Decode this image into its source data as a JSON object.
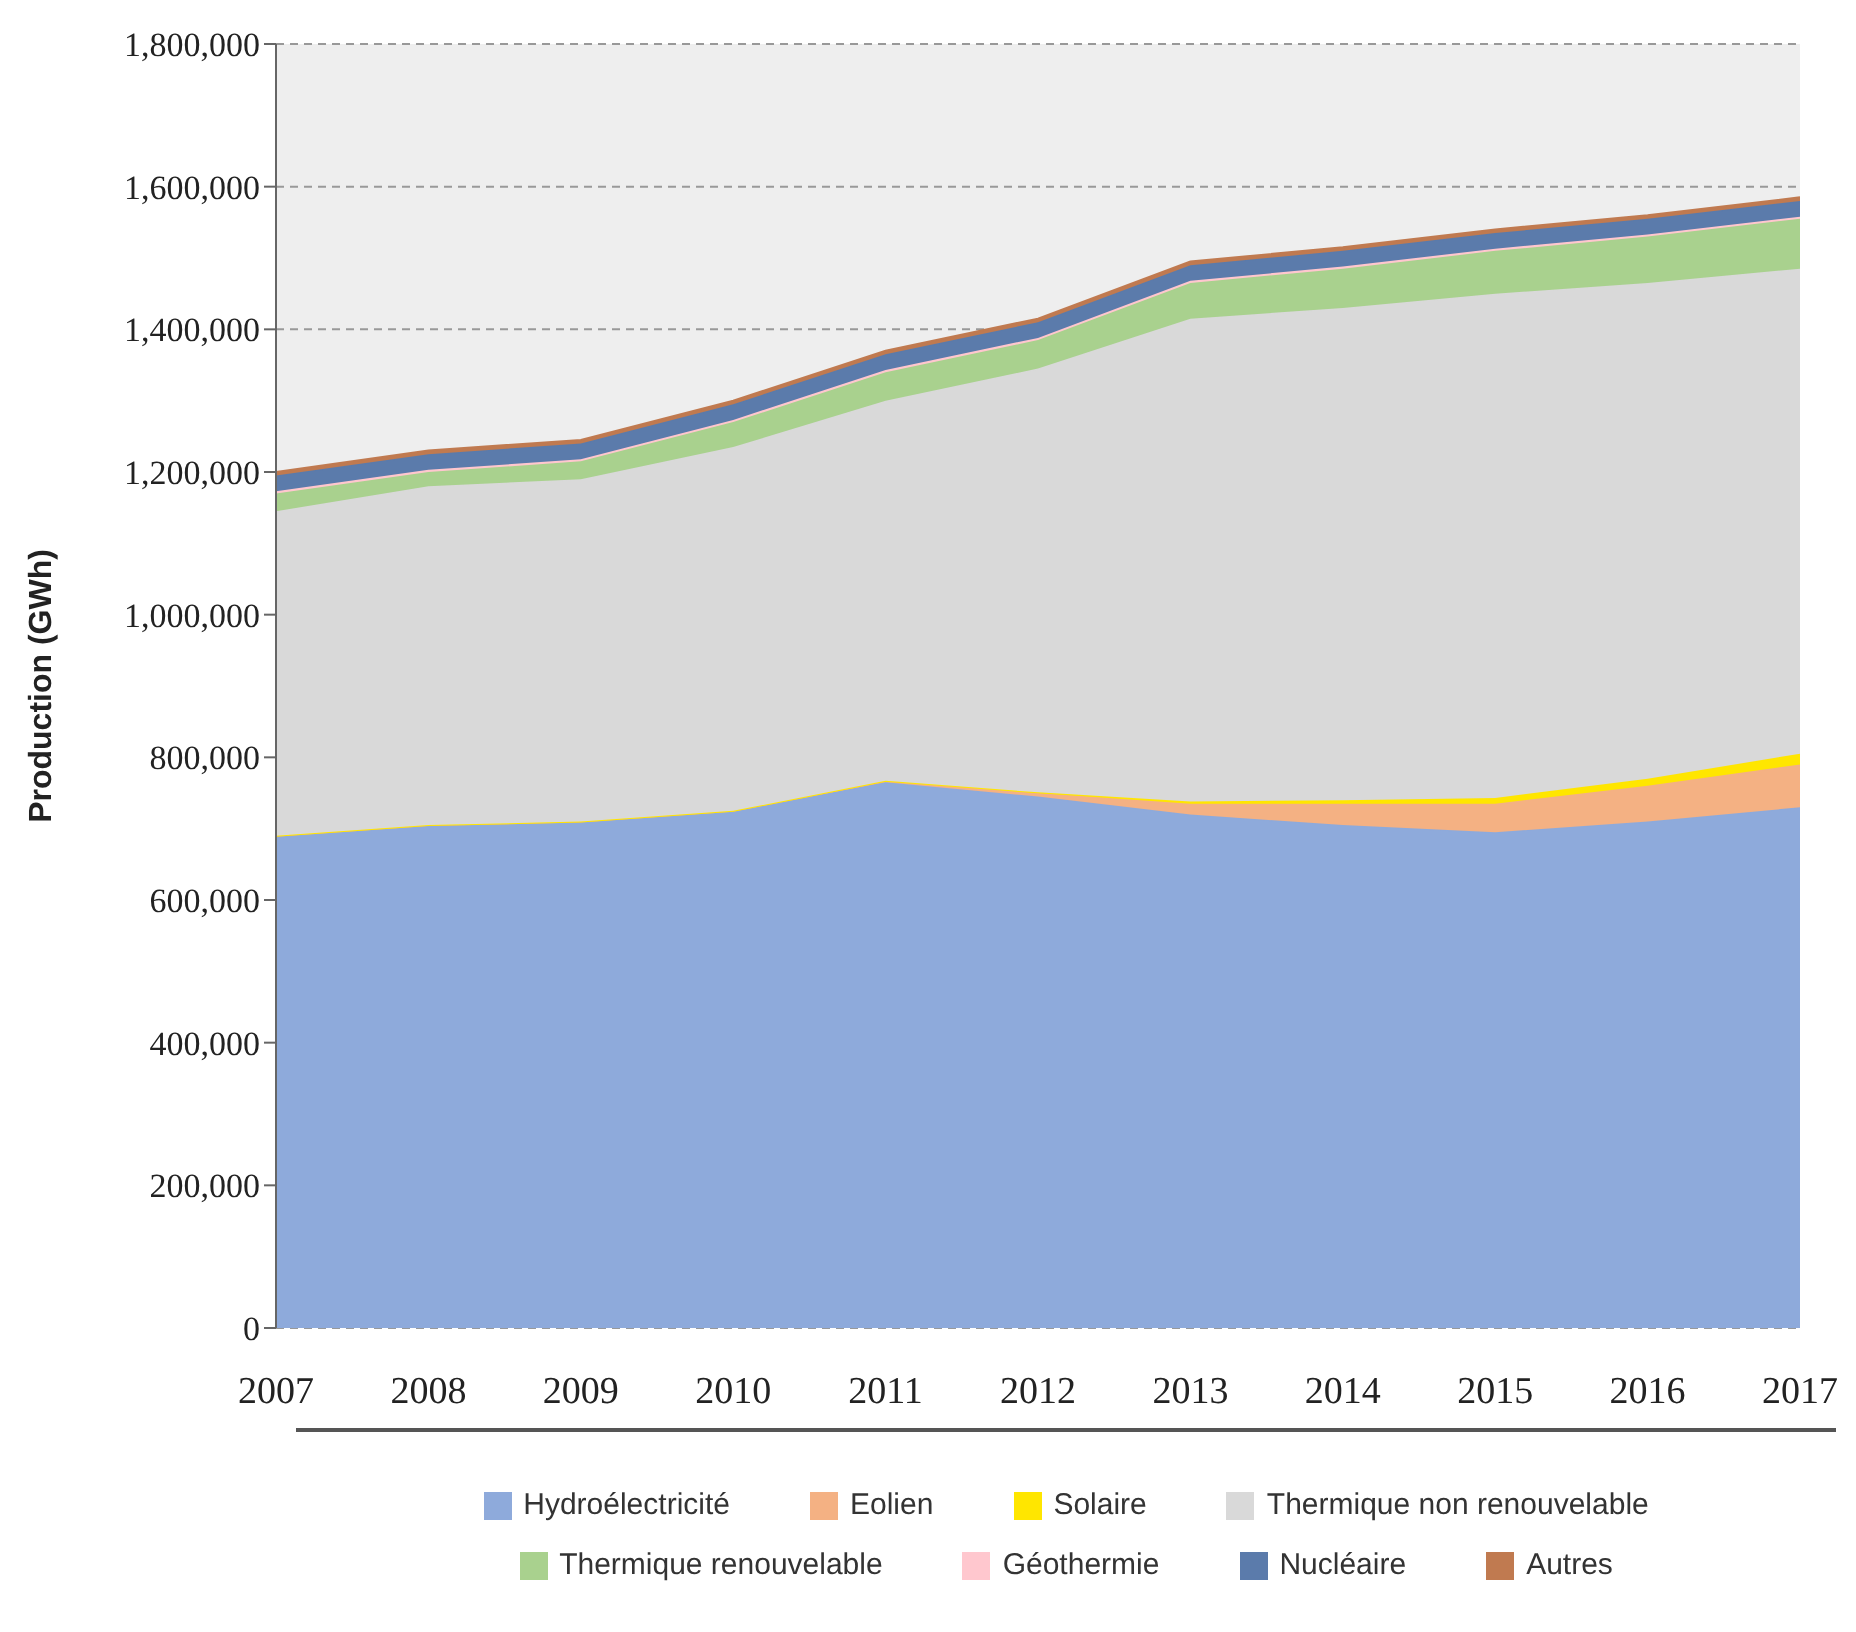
{
  "chart_data": {
    "type": "area",
    "stacked": true,
    "ylabel": "Production (GWh)",
    "x": [
      2007,
      2008,
      2009,
      2010,
      2011,
      2012,
      2013,
      2014,
      2015,
      2016,
      2017
    ],
    "xlim": [
      2007,
      2017
    ],
    "xticks": [
      2007,
      2008,
      2009,
      2010,
      2011,
      2012,
      2013,
      2014,
      2015,
      2016,
      2017
    ],
    "ylim": [
      0,
      1800000
    ],
    "yticks": [
      0,
      {
        "value": 200000,
        "label": "200,000"
      },
      {
        "value": 400000,
        "label": "400,000"
      },
      {
        "value": 600000,
        "label": "600,000"
      },
      {
        "value": 800000,
        "label": "800,000"
      },
      {
        "value": 1000000,
        "label": "1,000,000"
      },
      {
        "value": 1200000,
        "label": "1,200,000"
      },
      {
        "value": 1400000,
        "label": "1,400,000"
      },
      {
        "value": 1600000,
        "label": "1,600,000"
      },
      {
        "value": 1800000,
        "label": "1,800,000"
      }
    ],
    "grid": "y",
    "legend": "bottom",
    "series": [
      {
        "name": "Hydroélectricité",
        "color": "#8eaadb",
        "values": [
          690000,
          705000,
          710000,
          725000,
          765000,
          745000,
          720000,
          705000,
          695000,
          710000,
          730000
        ]
      },
      {
        "name": "Eolien",
        "color": "#f4b183",
        "values": [
          0,
          0,
          0,
          0,
          2000,
          5000,
          15000,
          30000,
          40000,
          50000,
          60000
        ]
      },
      {
        "name": "Solaire",
        "color": "#ffe600",
        "values": [
          0,
          0,
          0,
          0,
          0,
          1000,
          3000,
          5000,
          8000,
          10000,
          15000
        ]
      },
      {
        "name": "Thermique non renouvelable",
        "color": "#d9d9d9",
        "values": [
          455000,
          475000,
          480000,
          510000,
          533000,
          594000,
          677000,
          690000,
          707000,
          695000,
          680000
        ]
      },
      {
        "name": "Thermique renouvelable",
        "color": "#a9d18e",
        "values": [
          25000,
          20000,
          25000,
          35000,
          40000,
          40000,
          50000,
          55000,
          60000,
          65000,
          70000
        ]
      },
      {
        "name": "Géothermie",
        "color": "#ffc7ce",
        "values": [
          3000,
          3000,
          3000,
          3000,
          3000,
          3000,
          3000,
          3000,
          3000,
          3000,
          3000
        ]
      },
      {
        "name": "Nucléaire",
        "color": "#5b7bab",
        "values": [
          22000,
          22000,
          22000,
          22000,
          22000,
          22000,
          22000,
          22000,
          22000,
          22000,
          22000
        ]
      },
      {
        "name": "Autres",
        "color": "#c07a50",
        "values": [
          5000,
          5000,
          5000,
          5000,
          5000,
          5000,
          5000,
          5000,
          5000,
          5000,
          5000
        ]
      }
    ]
  }
}
